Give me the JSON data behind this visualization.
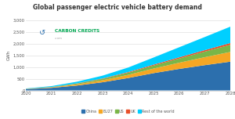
{
  "title": "Global passenger electric vehicle battery demand",
  "ylabel": "GWh",
  "years": [
    2020,
    2021,
    2022,
    2023,
    2024,
    2025,
    2026,
    2027,
    2028
  ],
  "china": [
    55,
    110,
    210,
    350,
    530,
    740,
    920,
    1080,
    1230
  ],
  "eu27": [
    8,
    20,
    50,
    85,
    135,
    195,
    265,
    340,
    415
  ],
  "us": [
    6,
    14,
    32,
    58,
    90,
    130,
    180,
    240,
    305
  ],
  "uk": [
    2,
    5,
    11,
    18,
    28,
    38,
    50,
    62,
    75
  ],
  "rest": [
    12,
    35,
    70,
    120,
    195,
    305,
    430,
    560,
    700
  ],
  "colors": {
    "china": "#2c6fad",
    "eu27": "#f5a623",
    "us": "#7ab648",
    "uk": "#e8502a",
    "rest": "#00cfff"
  },
  "ylim": [
    0,
    3000
  ],
  "yticks": [
    0,
    500,
    1000,
    1500,
    2000,
    2500,
    3000
  ],
  "logo_text": "CARBON CREDITS",
  "logo_subtext": ".com",
  "logo_color": "#00a651",
  "logo_icon_color": "#2c7bb6",
  "background_color": "#ffffff",
  "grid_color": "#e0e0e0",
  "title_color": "#333333",
  "legend_labels": [
    "China",
    "EU27",
    "US",
    "UK",
    "Rest of the world"
  ]
}
